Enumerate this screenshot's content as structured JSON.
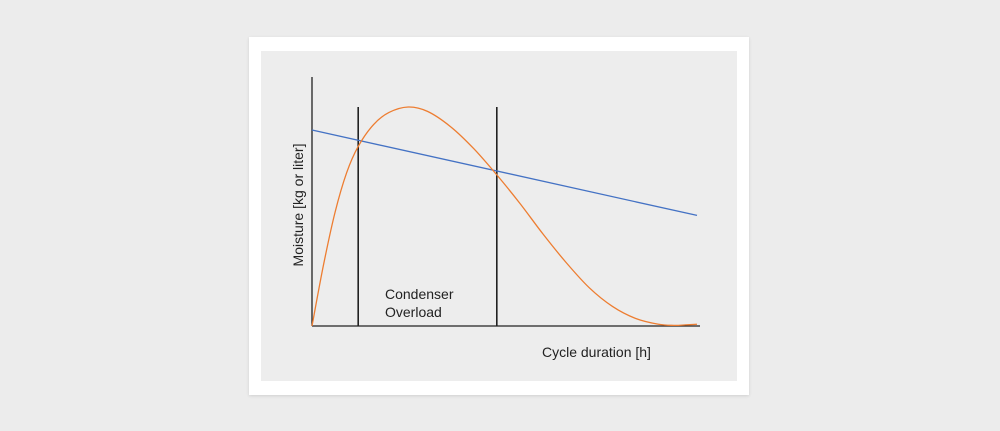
{
  "chart_data": {
    "type": "line",
    "xlabel": "Cycle duration [h]",
    "ylabel": "Moisture [kg or liter]",
    "annotation": [
      "Condenser",
      "Overload"
    ],
    "xlim": [
      0,
      100
    ],
    "ylim": [
      0,
      100
    ],
    "series": [
      {
        "color": "#4472c4",
        "x": [
          0,
          100
        ],
        "y": [
          89.5,
          50.5
        ]
      },
      {
        "color": "#ed7d31",
        "x": [
          0,
          3,
          6,
          9,
          12,
          16,
          20,
          25,
          30,
          36,
          42,
          48,
          54,
          60,
          66,
          72,
          78,
          84,
          90,
          94,
          97,
          100
        ],
        "y": [
          0,
          28,
          52,
          70,
          82,
          92,
          97.5,
          100,
          98,
          91,
          81,
          69,
          56,
          42,
          29,
          17.5,
          9,
          3.5,
          0.8,
          0.3,
          0.5,
          0.8
        ]
      }
    ],
    "vlines": [
      12,
      48
    ],
    "colors": {
      "axis": "#222222",
      "vline": "#222222",
      "background": "#ededed"
    }
  }
}
